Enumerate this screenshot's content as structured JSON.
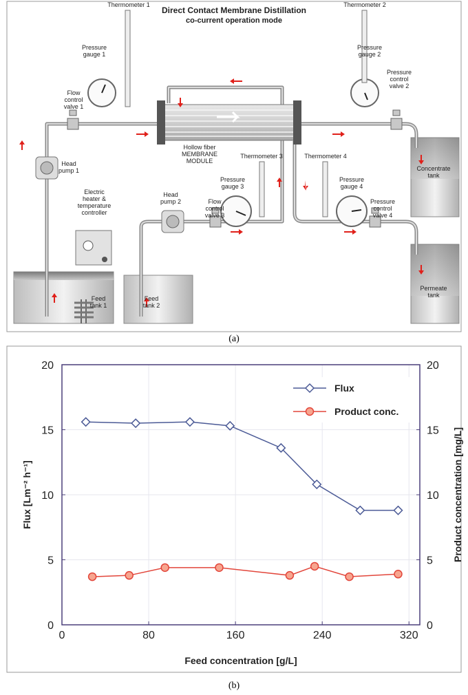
{
  "diagram": {
    "title": "Direct Contact Membrane Distillation",
    "subtitle": "co-current operation mode",
    "labels": [
      [
        "Thermometer 1"
      ],
      [
        "Pressure",
        "gauge 1"
      ],
      [
        "Flow",
        "control",
        "valve 1"
      ],
      [
        "Thermometer 2"
      ],
      [
        "Pressure",
        "gauge 2"
      ],
      [
        "Pressure",
        "control",
        "valve 2"
      ],
      [
        "Head",
        "pump 1"
      ],
      [
        "Hollow fiber",
        "MEMBRANE",
        "MODULE"
      ],
      [
        "Thermometer 3"
      ],
      [
        "Thermometer 4"
      ],
      [
        "Pressure",
        "gauge 3"
      ],
      [
        "Flow",
        "control",
        "valve 3"
      ],
      [
        "Pressure",
        "gauge 4"
      ],
      [
        "Pressure",
        "control",
        "valve 4"
      ],
      [
        "Concentrate",
        "tank"
      ],
      [
        "Electric",
        "heater &",
        "temperature",
        "controller"
      ],
      [
        "Head",
        "pump 2"
      ],
      [
        "Feed",
        "tank 1"
      ],
      [
        "Feed",
        "tank 2"
      ],
      [
        "Permeate",
        "tank"
      ]
    ],
    "caption": "(a)"
  },
  "chart_data": {
    "type": "line",
    "caption": "(b)",
    "x_label": "Feed concentration [g/L]",
    "y_label": "Flux [Lm⁻² h⁻¹]",
    "y2_label": "Product concentration [mg/L]",
    "xlim": [
      0,
      330
    ],
    "xticks": [
      0,
      80,
      160,
      240,
      320
    ],
    "ylim": [
      0,
      20
    ],
    "yticks": [
      0,
      5,
      10,
      15,
      20
    ],
    "y2lim": [
      0,
      20
    ],
    "y2ticks": [
      0,
      5,
      10,
      15,
      20
    ],
    "grid": true,
    "legend": "upper right",
    "series": [
      {
        "name": "Flux",
        "color": "#4b5a96",
        "marker": "diamond",
        "x": [
          22,
          68,
          118,
          155,
          202,
          235,
          275,
          310
        ],
        "values": [
          15.6,
          15.5,
          15.6,
          15.3,
          13.6,
          10.8,
          8.8,
          8.8
        ]
      },
      {
        "name": "Product conc.",
        "color": "#e2453a",
        "marker": "circle",
        "axis": "y2",
        "x": [
          28,
          62,
          95,
          145,
          210,
          233,
          265,
          310
        ],
        "values": [
          3.7,
          3.8,
          4.4,
          4.4,
          3.8,
          4.5,
          3.7,
          3.9
        ]
      }
    ]
  }
}
